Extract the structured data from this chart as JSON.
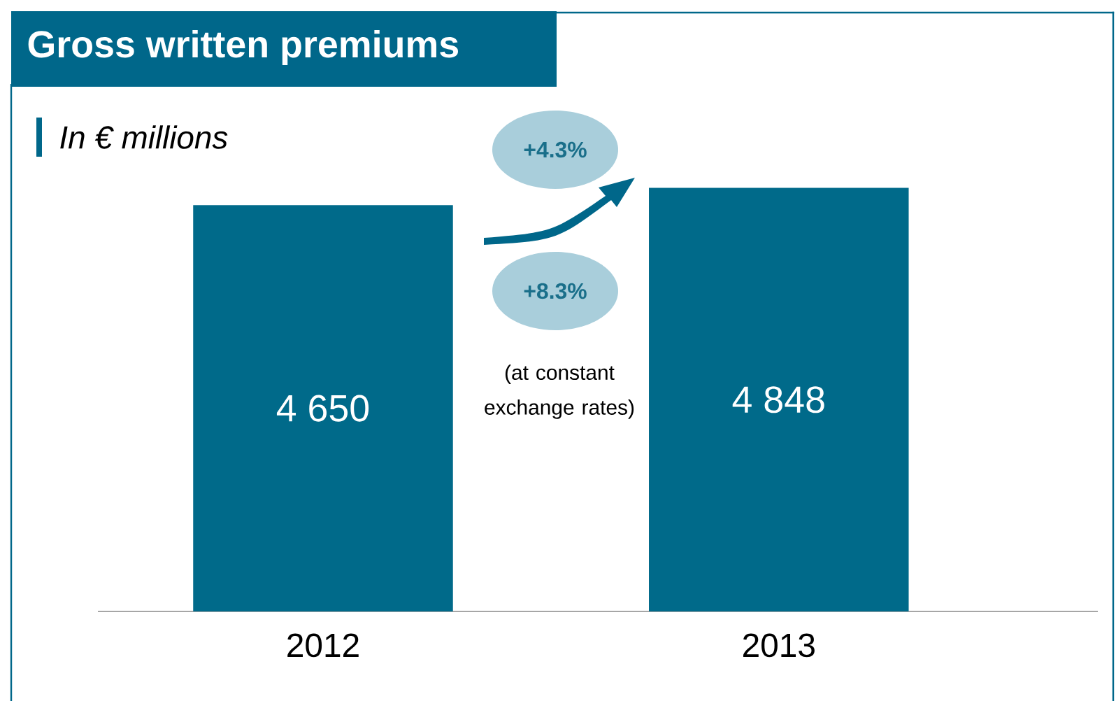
{
  "chart_data": {
    "type": "bar",
    "title": "Gross written premiums",
    "subtitle": "In € millions",
    "categories": [
      "2012",
      "2013"
    ],
    "values": [
      4650,
      4848
    ],
    "value_labels": [
      "4 650",
      "4 848"
    ],
    "color": "#006a8a",
    "tick_labels": "x",
    "annotations": [
      "+4.3%",
      "+8.3%",
      "(at constant exchange rates)"
    ]
  }
}
